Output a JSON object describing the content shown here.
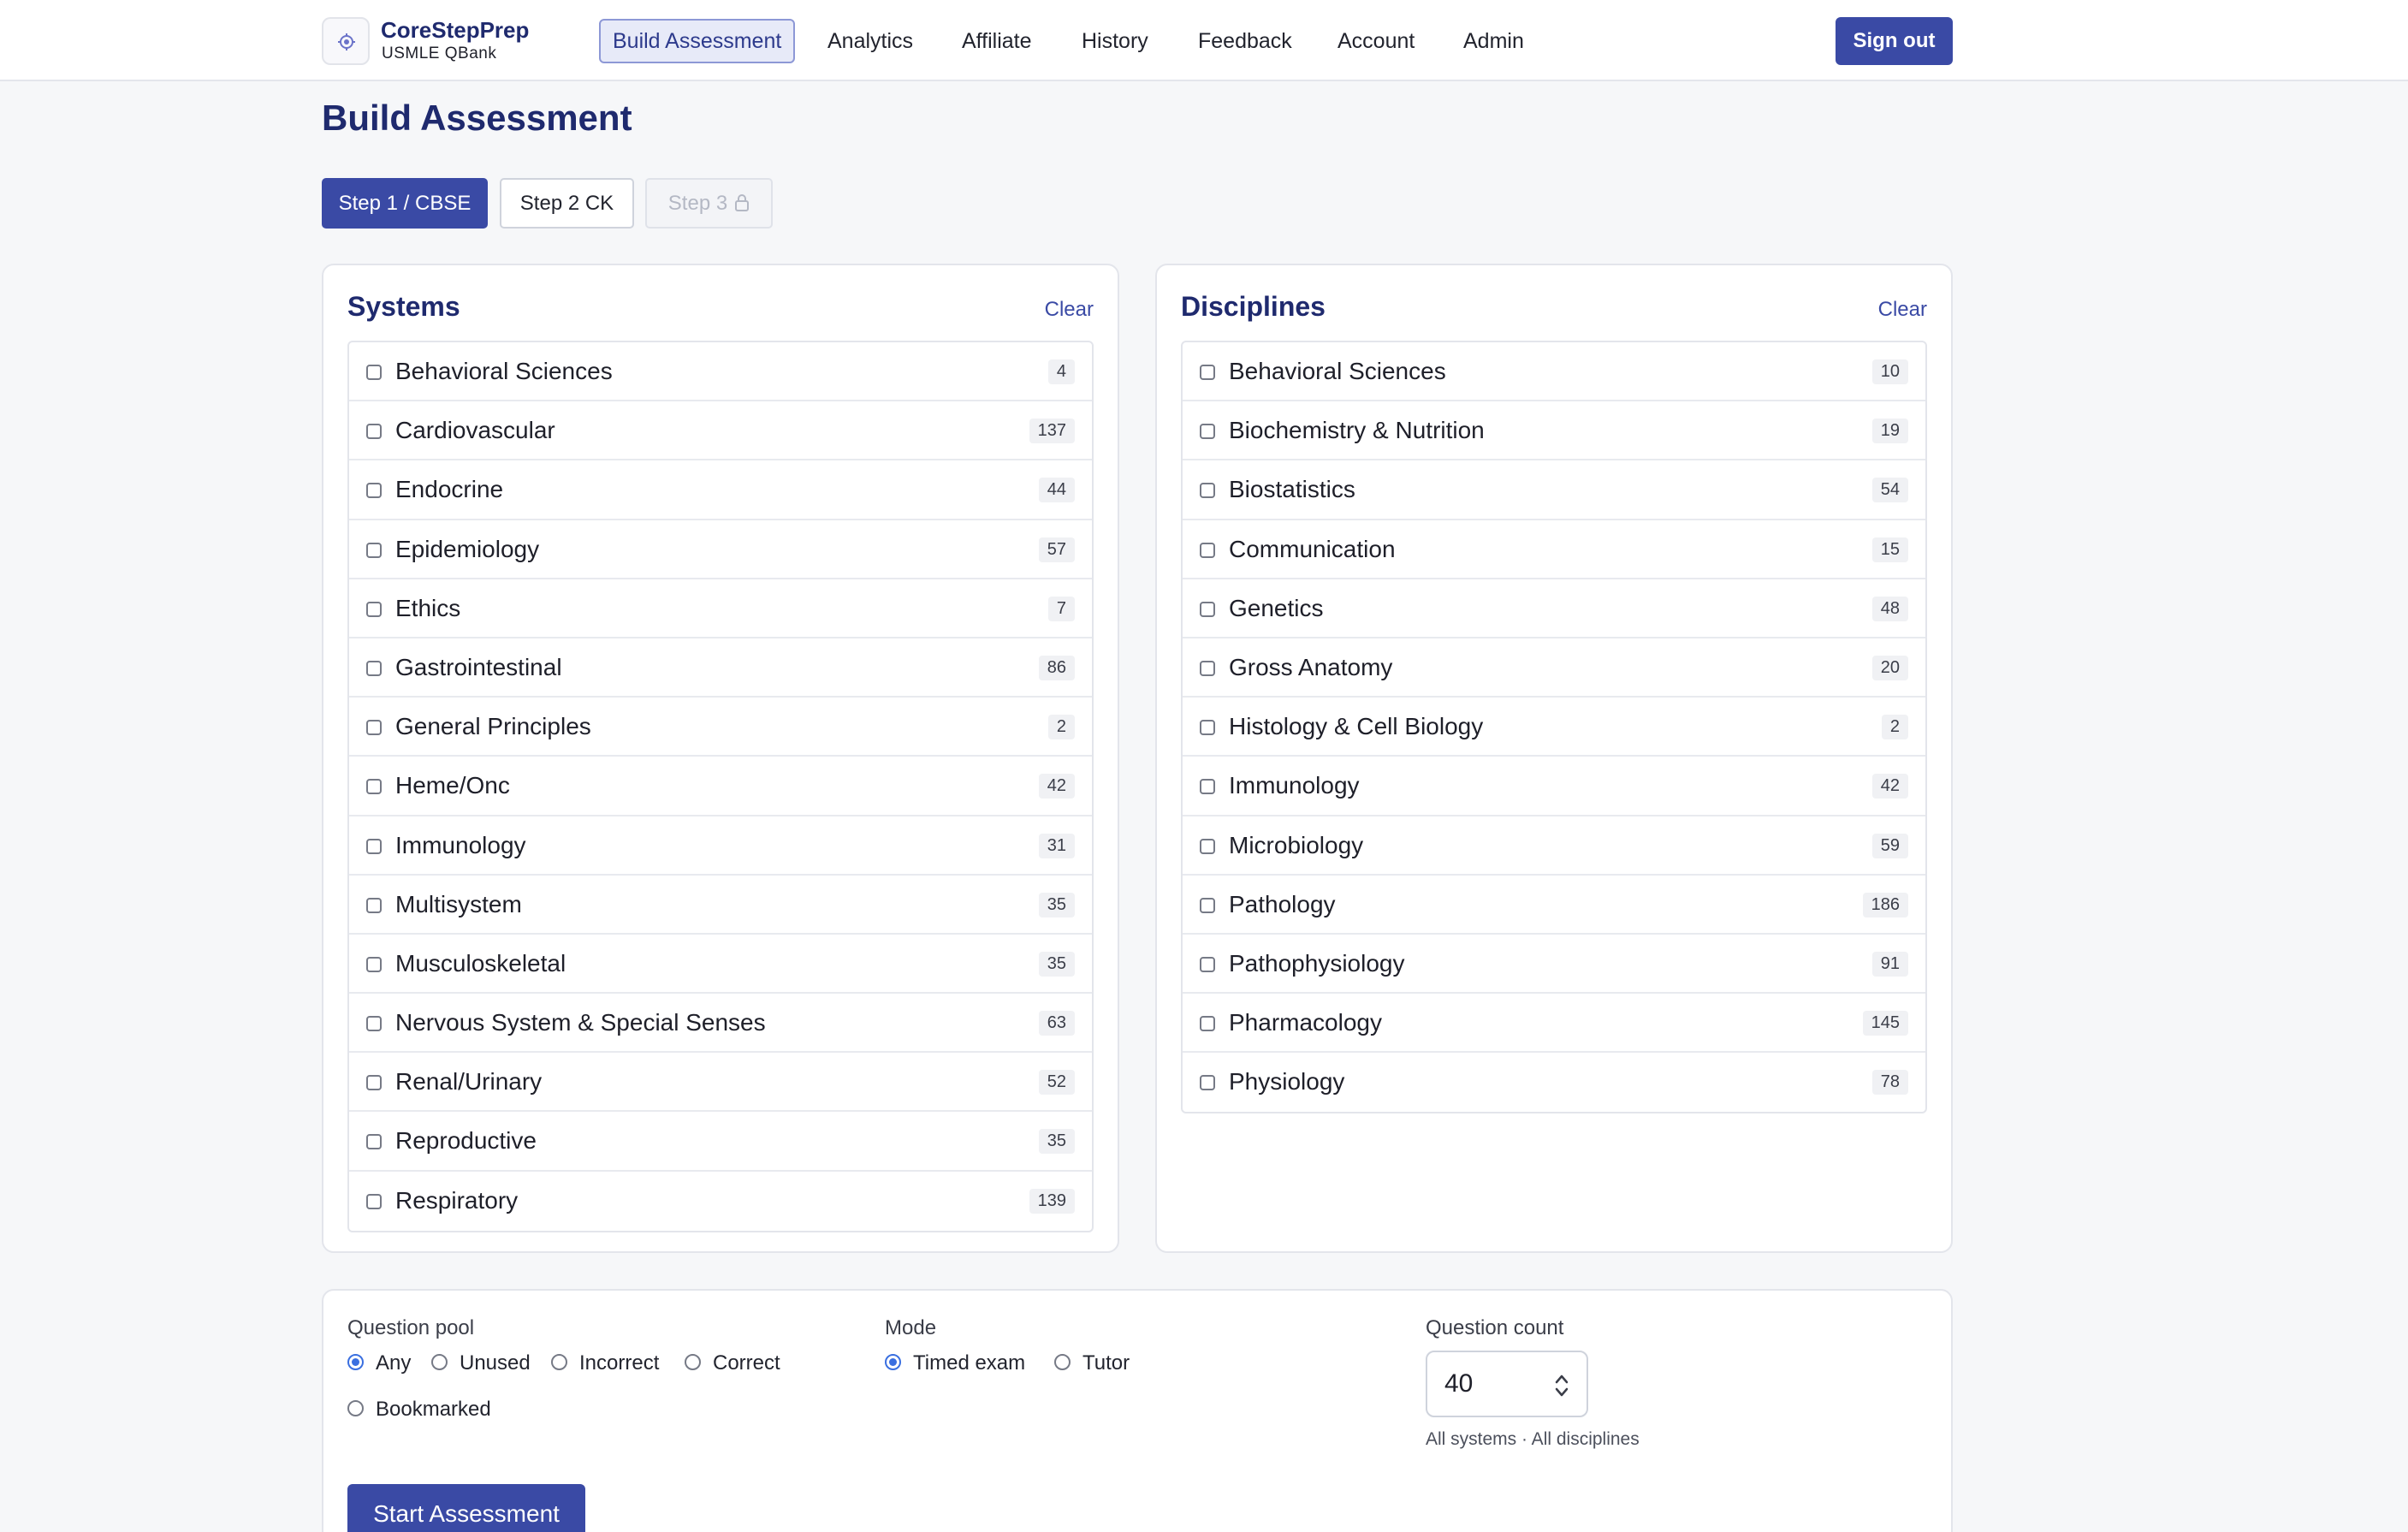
{
  "brand": {
    "title": "CoreStepPrep",
    "subtitle": "USMLE QBank"
  },
  "nav": {
    "items": [
      "Build Assessment",
      "Analytics",
      "Affiliate",
      "History",
      "Feedback",
      "Account",
      "Admin"
    ],
    "active": "Build Assessment",
    "sign_out": "Sign out"
  },
  "page_title": "Build Assessment",
  "steps": [
    {
      "label": "Step 1 / CBSE",
      "state": "active"
    },
    {
      "label": "Step 2 CK",
      "state": "normal"
    },
    {
      "label": "Step 3",
      "state": "locked"
    }
  ],
  "systems": {
    "title": "Systems",
    "clear": "Clear",
    "items": [
      {
        "label": "Behavioral Sciences",
        "count": "4"
      },
      {
        "label": "Cardiovascular",
        "count": "137"
      },
      {
        "label": "Endocrine",
        "count": "44"
      },
      {
        "label": "Epidemiology",
        "count": "57"
      },
      {
        "label": "Ethics",
        "count": "7"
      },
      {
        "label": "Gastrointestinal",
        "count": "86"
      },
      {
        "label": "General Principles",
        "count": "2"
      },
      {
        "label": "Heme/Onc",
        "count": "42"
      },
      {
        "label": "Immunology",
        "count": "31"
      },
      {
        "label": "Multisystem",
        "count": "35"
      },
      {
        "label": "Musculoskeletal",
        "count": "35"
      },
      {
        "label": "Nervous System & Special Senses",
        "count": "63"
      },
      {
        "label": "Renal/Urinary",
        "count": "52"
      },
      {
        "label": "Reproductive",
        "count": "35"
      },
      {
        "label": "Respiratory",
        "count": "139"
      }
    ]
  },
  "disciplines": {
    "title": "Disciplines",
    "clear": "Clear",
    "items": [
      {
        "label": "Behavioral Sciences",
        "count": "10"
      },
      {
        "label": "Biochemistry & Nutrition",
        "count": "19"
      },
      {
        "label": "Biostatistics",
        "count": "54"
      },
      {
        "label": "Communication",
        "count": "15"
      },
      {
        "label": "Genetics",
        "count": "48"
      },
      {
        "label": "Gross Anatomy",
        "count": "20"
      },
      {
        "label": "Histology & Cell Biology",
        "count": "2"
      },
      {
        "label": "Immunology",
        "count": "42"
      },
      {
        "label": "Microbiology",
        "count": "59"
      },
      {
        "label": "Pathology",
        "count": "186"
      },
      {
        "label": "Pathophysiology",
        "count": "91"
      },
      {
        "label": "Pharmacology",
        "count": "145"
      },
      {
        "label": "Physiology",
        "count": "78"
      }
    ]
  },
  "question_pool": {
    "label": "Question pool",
    "options": [
      "Any",
      "Unused",
      "Incorrect",
      "Correct",
      "Bookmarked"
    ],
    "selected": "Any"
  },
  "mode": {
    "label": "Mode",
    "options": [
      "Timed exam",
      "Tutor"
    ],
    "selected": "Timed exam"
  },
  "question_count": {
    "label": "Question count",
    "value": "40",
    "hint": "All systems · All disciplines"
  },
  "start_button": "Start Assessment",
  "colors": {
    "primary": "#3a4aa5",
    "heading": "#1f2a6e",
    "radio_selected": "#3a6fe0"
  }
}
